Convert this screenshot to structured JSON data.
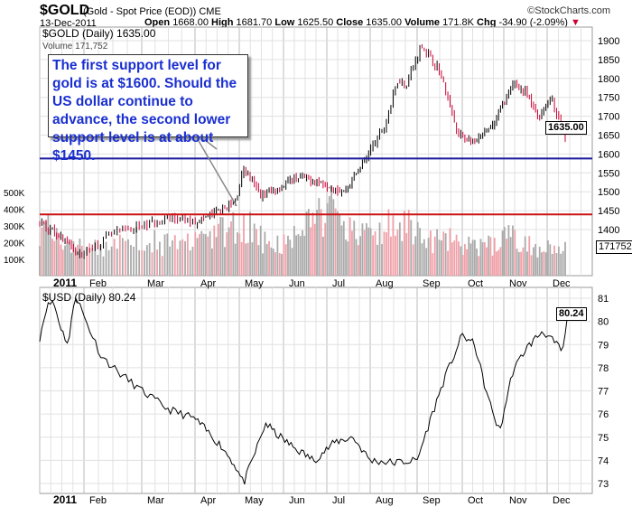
{
  "header": {
    "symbol": "$GOLD",
    "description": "(Gold - Spot Price (EOD)) CME",
    "date": "13-Dec-2011",
    "brand": "©StockCharts.com",
    "open_label": "Open",
    "open": "1668.00",
    "high_label": "High",
    "high": "1681.70",
    "low_label": "Low",
    "low": "1625.50",
    "close_label": "Close",
    "close": "1635.00",
    "volume_label": "Volume",
    "volume": "171.8K",
    "chg_label": "Chg",
    "chg": "-34.90 (-2.09%)"
  },
  "colors": {
    "up": "#000000",
    "down": "#cc0033",
    "support1": "#1a1aa0",
    "support2": "#cc1111",
    "note_text": "#1a2fd0"
  },
  "chart_data": [
    {
      "type": "line",
      "title": "$GOLD (Daily) 1635.00",
      "volume_legend": "Volume 171,752",
      "last_value_tag": "1635.00",
      "volume_tag": "171752",
      "ylim": [
        1350,
        1930
      ],
      "yticks": [
        1400,
        1450,
        1500,
        1550,
        1600,
        1650,
        1700,
        1750,
        1800,
        1850,
        1900
      ],
      "volume_ticks": [
        "100K",
        "200K",
        "300K",
        "400K",
        "500K"
      ],
      "support_lines": [
        1588,
        1440
      ],
      "x_keypoints": [
        0,
        0.6,
        0.9,
        1.5,
        2.0,
        2.5,
        3.0,
        3.9,
        4.1,
        4.5,
        4.9,
        5.3,
        5.9,
        6.4,
        6.95,
        7.3,
        7.6,
        7.75,
        8.1,
        8.5,
        8.9,
        9.3,
        9.7,
        10.25,
        10.5,
        10.8,
        11.1,
        11.4
      ],
      "y_keypoints": [
        1420,
        1370,
        1330,
        1390,
        1410,
        1430,
        1420,
        1470,
        1560,
        1490,
        1510,
        1540,
        1525,
        1500,
        1600,
        1670,
        1800,
        1780,
        1890,
        1820,
        1650,
        1630,
        1670,
        1790,
        1760,
        1700,
        1750,
        1635
      ],
      "volume_k": [
        300,
        260,
        220,
        180,
        160,
        170,
        200,
        230,
        250,
        220,
        200,
        190,
        210,
        230,
        260,
        280,
        300,
        320,
        260,
        220,
        200,
        210,
        250,
        320,
        380,
        420,
        360,
        300,
        280,
        260,
        300,
        340,
        310,
        270,
        230,
        220,
        240,
        200,
        190,
        180,
        200,
        220,
        240,
        230,
        200,
        180,
        210,
        172
      ],
      "annotation": "The first support level for gold is at $1600.  Should the US dollar continue to advance, the second lower support level is at about $1450."
    },
    {
      "type": "line",
      "title": "$USD (Daily) 80.24",
      "last_value_tag": "80.24",
      "ylim": [
        72.8,
        81.3
      ],
      "yticks": [
        73,
        74,
        75,
        76,
        77,
        78,
        79,
        80,
        81
      ],
      "x_keypoints": [
        0,
        0.15,
        0.3,
        0.5,
        0.65,
        0.8,
        0.95,
        1.3,
        1.6,
        2.0,
        2.5,
        3.0,
        3.6,
        3.9,
        4.1,
        4.6,
        4.8,
        5.2,
        5.7,
        6.2,
        6.6,
        7.0,
        7.5,
        8.0,
        8.3,
        8.6,
        9.0,
        9.3,
        9.6,
        9.9,
        10.2,
        10.5,
        10.9,
        11.2,
        11.35,
        11.45
      ],
      "y_keypoints": [
        79.3,
        80.6,
        80.9,
        79.6,
        79.0,
        81.2,
        80.5,
        78.5,
        77.8,
        77.0,
        76.2,
        75.8,
        74.6,
        73.8,
        73.0,
        75.6,
        75.2,
        74.6,
        74.0,
        74.8,
        75.0,
        74.0,
        73.9,
        74.0,
        75.8,
        77.5,
        79.4,
        79.0,
        76.8,
        75.2,
        77.8,
        78.8,
        79.6,
        79.0,
        78.7,
        80.24
      ]
    }
  ],
  "x_axis": {
    "labels": [
      "2011",
      "Feb",
      "Mar",
      "Apr",
      "May",
      "Jun",
      "Jul",
      "Aug",
      "Sep",
      "Oct",
      "Nov",
      "Dec"
    ]
  }
}
